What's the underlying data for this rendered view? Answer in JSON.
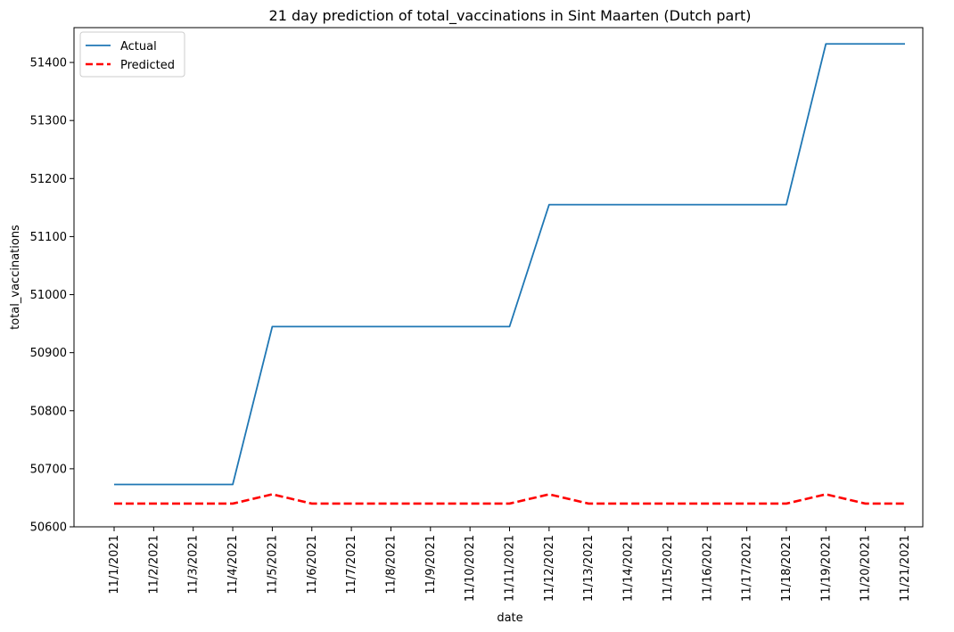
{
  "chart_data": {
    "type": "line",
    "title": "21 day prediction of total_vaccinations in Sint Maarten (Dutch part)",
    "xlabel": "date",
    "ylabel": "total_vaccinations",
    "x": [
      "11/1/2021",
      "11/2/2021",
      "11/3/2021",
      "11/4/2021",
      "11/5/2021",
      "11/6/2021",
      "11/7/2021",
      "11/8/2021",
      "11/9/2021",
      "11/10/2021",
      "11/11/2021",
      "11/12/2021",
      "11/13/2021",
      "11/14/2021",
      "11/15/2021",
      "11/16/2021",
      "11/17/2021",
      "11/18/2021",
      "11/19/2021",
      "11/20/2021",
      "11/21/2021"
    ],
    "ylim": [
      50600,
      51460
    ],
    "yticks": [
      50600,
      50700,
      50800,
      50900,
      51000,
      51100,
      51200,
      51300,
      51400
    ],
    "series": [
      {
        "name": "Actual",
        "color": "#1f77b4",
        "style": "solid",
        "values": [
          50673,
          50673,
          50673,
          50673,
          50945,
          50945,
          50945,
          50945,
          50945,
          50945,
          50945,
          51155,
          51155,
          51155,
          51155,
          51155,
          51155,
          51155,
          51432,
          51432,
          51432
        ]
      },
      {
        "name": "Predicted",
        "color": "#ff0000",
        "style": "dashed",
        "values": [
          50640,
          50640,
          50640,
          50640,
          50656,
          50640,
          50640,
          50640,
          50640,
          50640,
          50640,
          50656,
          50640,
          50640,
          50640,
          50640,
          50640,
          50640,
          50656,
          50640,
          50640
        ]
      }
    ],
    "grid": false,
    "legend_position": "top-left"
  }
}
